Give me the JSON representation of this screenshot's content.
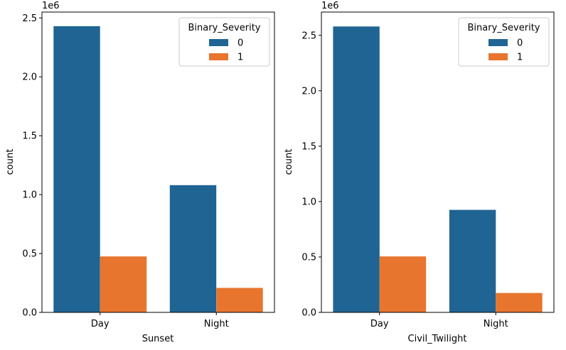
{
  "chart_data": [
    {
      "type": "bar",
      "xlabel": "Sunset",
      "ylabel": "count",
      "offset_text": "1e6",
      "categories": [
        "Day",
        "Night"
      ],
      "series": [
        {
          "name": "0",
          "color": "#1f6493",
          "values": [
            2430000,
            1080000
          ]
        },
        {
          "name": "1",
          "color": "#e8752d",
          "values": [
            475000,
            208000
          ]
        }
      ],
      "ylim": [
        0,
        2550000
      ],
      "yticks": [
        0,
        500000,
        1000000,
        1500000,
        2000000,
        2500000
      ],
      "ytick_labels": [
        "0.0",
        "0.5",
        "1.0",
        "1.5",
        "2.0",
        "2.5"
      ],
      "legend": {
        "title": "Binary_Severity",
        "placement": "top-right"
      }
    },
    {
      "type": "bar",
      "xlabel": "Civil_Twilight",
      "ylabel": "count",
      "offset_text": "1e6",
      "categories": [
        "Day",
        "Night"
      ],
      "series": [
        {
          "name": "0",
          "color": "#1f6493",
          "values": [
            2580000,
            925000
          ]
        },
        {
          "name": "1",
          "color": "#e8752d",
          "values": [
            505000,
            175000
          ]
        }
      ],
      "ylim": [
        0,
        2710000
      ],
      "yticks": [
        0,
        500000,
        1000000,
        1500000,
        2000000,
        2500000
      ],
      "ytick_labels": [
        "0.0",
        "0.5",
        "1.0",
        "1.5",
        "2.0",
        "2.5"
      ],
      "legend": {
        "title": "Binary_Severity",
        "placement": "top-right"
      }
    }
  ]
}
